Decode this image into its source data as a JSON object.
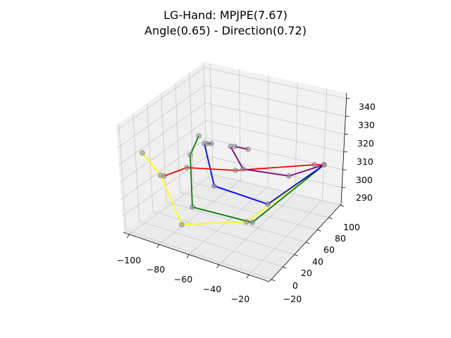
{
  "chart_data": {
    "type": "line-3d",
    "title": "LG-Hand: MPJPE(7.67)",
    "subtitle": "Angle(0.65) - Direction(0.72)",
    "x_ticks": [
      "−100",
      "−80",
      "−60",
      "−40",
      "−20"
    ],
    "y_ticks": [
      "−20",
      "0",
      "20",
      "40",
      "60",
      "80",
      "100"
    ],
    "z_ticks": [
      "290",
      "300",
      "310",
      "320",
      "330",
      "340"
    ],
    "grid": true,
    "colors": {
      "pane_left": "#f0f0f0",
      "pane_back": "#f2f2f2",
      "pane_floor": "#ebebeb",
      "grid": "#c8c8c8",
      "joint_fill": "#999999"
    },
    "series": [
      {
        "color": "#ffff00",
        "points": [
          [
            202,
            217
          ],
          [
            228,
            249
          ],
          [
            258,
            319
          ],
          [
            350,
            315
          ],
          [
            460,
            234
          ]
        ]
      },
      {
        "color": "#008000",
        "points": [
          [
            282,
            193
          ],
          [
            270,
            220
          ],
          [
            273,
            294
          ],
          [
            358,
            316
          ],
          [
            460,
            234
          ]
        ]
      },
      {
        "color": "#0000ff",
        "points": [
          [
            290,
            204
          ],
          [
            304,
            264
          ],
          [
            380,
            290
          ],
          [
            460,
            234
          ]
        ]
      },
      {
        "color": "#ff0000",
        "points": [
          [
            233,
            250
          ],
          [
            265,
            238
          ],
          [
            334,
            242
          ],
          [
            446,
            234
          ],
          [
            460,
            234
          ]
        ]
      },
      {
        "color": "#800080",
        "points": [
          [
            327,
            208
          ],
          [
            345,
            240
          ],
          [
            410,
            250
          ],
          [
            460,
            234
          ]
        ]
      },
      {
        "color": "#800080",
        "points": [
          [
            333,
            208
          ],
          [
            352,
            212
          ]
        ]
      },
      {
        "color": "#0000ff",
        "points": [
          [
            294,
            204
          ],
          [
            300,
            204
          ]
        ]
      }
    ]
  }
}
